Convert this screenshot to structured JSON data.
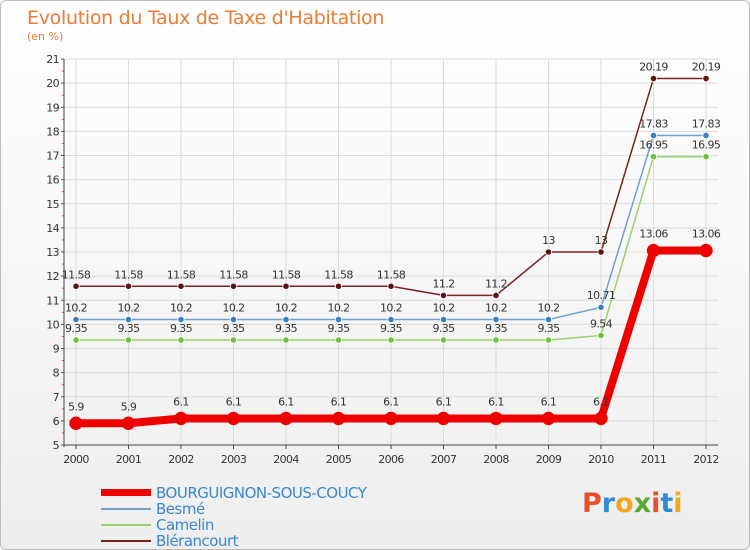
{
  "title": "Evolution du Taux de Taxe d'Habitation",
  "unit_label": "(en %)",
  "brand": {
    "letters": [
      "P",
      "r",
      "o",
      "x",
      "i",
      "t",
      "i"
    ],
    "colors": [
      "#e84e2a",
      "#2e8ed1",
      "#f0a81d",
      "#5aa832",
      "#e84e2a",
      "#2e8ed1",
      "#f0a81d"
    ]
  },
  "chart_data": {
    "type": "line",
    "title": "Evolution du Taux de Taxe d'Habitation",
    "ylabel": "(en %)",
    "xlabel": "",
    "x": [
      "2000",
      "2001",
      "2002",
      "2003",
      "2004",
      "2005",
      "2006",
      "2007",
      "2008",
      "2009",
      "2010",
      "2011",
      "2012"
    ],
    "ylim": [
      5,
      21
    ],
    "yticks": [
      "5",
      "6",
      "7",
      "8",
      "9",
      "10",
      "11",
      "12",
      "13",
      "14",
      "15",
      "16",
      "17",
      "18",
      "19",
      "20",
      "21"
    ],
    "legend_position": "bottom-left",
    "series": [
      {
        "name": "BOURGUIGNON-SOUS-COUCY",
        "color": "#ee0000",
        "marker": "#ee0000",
        "weight": "thick",
        "values": [
          5.9,
          5.9,
          6.1,
          6.1,
          6.1,
          6.1,
          6.1,
          6.1,
          6.1,
          6.1,
          6.1,
          13.06,
          13.06
        ],
        "labels": [
          "5.9",
          "5.9",
          "6.1",
          "6.1",
          "6.1",
          "6.1",
          "6.1",
          "6.1",
          "6.1",
          "6.1",
          "6.1",
          "13.06",
          "13.06"
        ]
      },
      {
        "name": "Besmé",
        "color": "#6ea0d0",
        "marker": "#3a7fc0",
        "weight": "thin",
        "values": [
          10.2,
          10.2,
          10.2,
          10.2,
          10.2,
          10.2,
          10.2,
          10.2,
          10.2,
          10.2,
          10.71,
          17.83,
          17.83
        ],
        "labels": [
          "10.2",
          "10.2",
          "10.2",
          "10.2",
          "10.2",
          "10.2",
          "10.2",
          "10.2",
          "10.2",
          "10.2",
          "10.71",
          "17.83",
          "17.83"
        ]
      },
      {
        "name": "Camelin",
        "color": "#99d16d",
        "marker": "#6cc23a",
        "weight": "thin",
        "values": [
          9.35,
          9.35,
          9.35,
          9.35,
          9.35,
          9.35,
          9.35,
          9.35,
          9.35,
          9.35,
          9.54,
          16.95,
          16.95
        ],
        "labels": [
          "9.35",
          "9.35",
          "9.35",
          "9.35",
          "9.35",
          "9.35",
          "9.35",
          "9.35",
          "9.35",
          "9.35",
          "9.54",
          "16.95",
          "16.95"
        ]
      },
      {
        "name": "Blérancourt",
        "color": "#7a2222",
        "marker": "#5a1414",
        "weight": "thin",
        "values": [
          11.58,
          11.58,
          11.58,
          11.58,
          11.58,
          11.58,
          11.58,
          11.2,
          11.2,
          13,
          13,
          20.19,
          20.19
        ],
        "labels": [
          "11.58",
          "11.58",
          "11.58",
          "11.58",
          "11.58",
          "11.58",
          "11.58",
          "11.2",
          "11.2",
          "13",
          "13",
          "20.19",
          "20.19"
        ]
      }
    ]
  }
}
